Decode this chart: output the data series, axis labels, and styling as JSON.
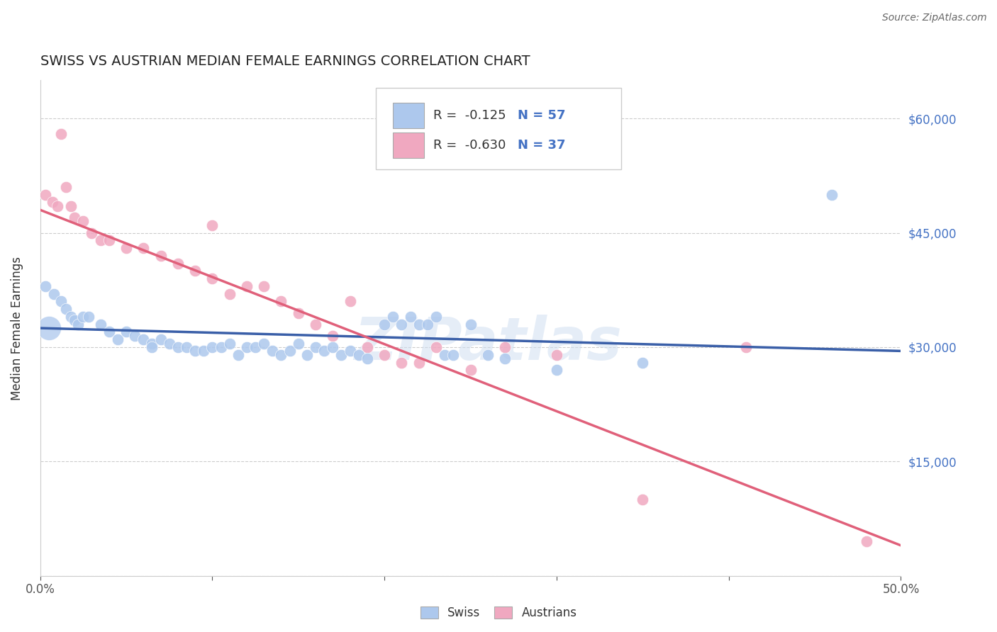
{
  "title": "SWISS VS AUSTRIAN MEDIAN FEMALE EARNINGS CORRELATION CHART",
  "source": "Source: ZipAtlas.com",
  "ylabel": "Median Female Earnings",
  "yticks": [
    0,
    15000,
    30000,
    45000,
    60000
  ],
  "ytick_labels": [
    "",
    "$15,000",
    "$30,000",
    "$45,000",
    "$60,000"
  ],
  "xrange": [
    0.0,
    0.5
  ],
  "yrange": [
    0,
    65000
  ],
  "swiss_R": "-0.125",
  "swiss_N": "57",
  "austrian_R": "-0.630",
  "austrian_N": "37",
  "swiss_color": "#adc8ed",
  "austrian_color": "#f0a8c0",
  "swiss_line_color": "#3a5fa8",
  "austrian_line_color": "#e0607a",
  "legend_text_color": "#4472c4",
  "watermark": "ZIPatlas",
  "swiss_line_x0": 0.0,
  "swiss_line_y0": 32500,
  "swiss_line_x1": 0.5,
  "swiss_line_y1": 29500,
  "austrian_line_x0": 0.0,
  "austrian_line_y0": 48000,
  "austrian_line_x1": 0.5,
  "austrian_line_y1": 4000,
  "swiss_x": [
    0.003,
    0.008,
    0.012,
    0.015,
    0.018,
    0.02,
    0.022,
    0.025,
    0.028,
    0.035,
    0.04,
    0.045,
    0.05,
    0.055,
    0.06,
    0.065,
    0.065,
    0.07,
    0.075,
    0.08,
    0.085,
    0.09,
    0.095,
    0.1,
    0.105,
    0.11,
    0.115,
    0.12,
    0.125,
    0.13,
    0.135,
    0.14,
    0.145,
    0.15,
    0.155,
    0.16,
    0.165,
    0.17,
    0.175,
    0.18,
    0.185,
    0.19,
    0.2,
    0.205,
    0.21,
    0.215,
    0.22,
    0.225,
    0.23,
    0.235,
    0.24,
    0.25,
    0.26,
    0.27,
    0.3,
    0.35,
    0.46
  ],
  "swiss_y": [
    38000,
    37000,
    36000,
    35000,
    34000,
    33500,
    33000,
    34000,
    34000,
    33000,
    32000,
    31000,
    32000,
    31500,
    31000,
    30500,
    30000,
    31000,
    30500,
    30000,
    30000,
    29500,
    29500,
    30000,
    30000,
    30500,
    29000,
    30000,
    30000,
    30500,
    29500,
    29000,
    29500,
    30500,
    29000,
    30000,
    29500,
    30000,
    29000,
    29500,
    29000,
    28500,
    33000,
    34000,
    33000,
    34000,
    33000,
    33000,
    34000,
    29000,
    29000,
    33000,
    29000,
    28500,
    27000,
    28000,
    50000
  ],
  "swiss_y_big": [
    32500
  ],
  "swiss_x_big": [
    0.005
  ],
  "austrian_x": [
    0.003,
    0.007,
    0.01,
    0.012,
    0.015,
    0.018,
    0.02,
    0.025,
    0.03,
    0.035,
    0.04,
    0.05,
    0.06,
    0.07,
    0.08,
    0.09,
    0.1,
    0.1,
    0.11,
    0.12,
    0.13,
    0.14,
    0.15,
    0.16,
    0.17,
    0.18,
    0.19,
    0.2,
    0.21,
    0.22,
    0.23,
    0.25,
    0.27,
    0.3,
    0.35,
    0.41,
    0.48
  ],
  "austrian_y": [
    50000,
    49000,
    48500,
    58000,
    51000,
    48500,
    47000,
    46500,
    45000,
    44000,
    44000,
    43000,
    43000,
    42000,
    41000,
    40000,
    39000,
    46000,
    37000,
    38000,
    38000,
    36000,
    34500,
    33000,
    31500,
    36000,
    30000,
    29000,
    28000,
    28000,
    30000,
    27000,
    30000,
    29000,
    10000,
    30000,
    4500
  ]
}
